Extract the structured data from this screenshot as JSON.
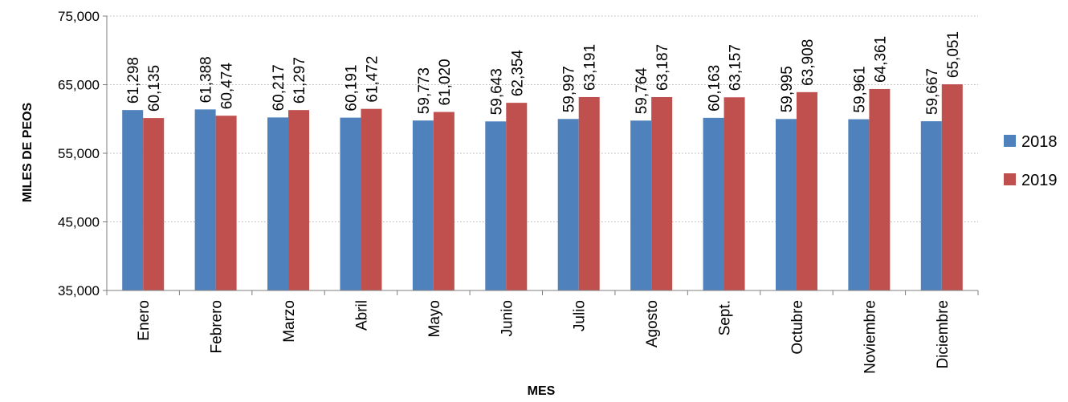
{
  "chart_data": {
    "type": "bar",
    "title": "",
    "xlabel": "MES",
    "ylabel": "MILES DE PEOS",
    "ylim": [
      35000,
      75000
    ],
    "yticks": [
      35000,
      45000,
      55000,
      65000,
      75000
    ],
    "yticks_labels": [
      "35,000",
      "45,000",
      "55,000",
      "65,000",
      "75,000"
    ],
    "grid": "horizontal dotted",
    "legend_position": "right",
    "categories": [
      "Enero",
      "Febrero",
      "Marzo",
      "Abril",
      "Mayo",
      "Junio",
      "Julio",
      "Agosto",
      "Sept.",
      "Octubre",
      "Noviembre",
      "Diciembre"
    ],
    "series": [
      {
        "name": "2018",
        "color": "#4f81bd",
        "values": [
          61298,
          61388,
          60217,
          60191,
          59773,
          59643,
          59997,
          59764,
          60163,
          59995,
          59961,
          59667
        ],
        "labels": [
          "61,298",
          "61,388",
          "60,217",
          "60,191",
          "59,773",
          "59,643",
          "59,997",
          "59,764",
          "60,163",
          "59,995",
          "59,961",
          "59,667"
        ]
      },
      {
        "name": "2019",
        "color": "#c0504d",
        "values": [
          60135,
          60474,
          61297,
          61472,
          61020,
          62354,
          63191,
          63187,
          63157,
          63908,
          64361,
          65051
        ],
        "labels": [
          "60,135",
          "60,474",
          "61,297",
          "61,472",
          "61,020",
          "62,354",
          "63,191",
          "63,187",
          "63,157",
          "63,908",
          "64,361",
          "65,051"
        ]
      }
    ]
  }
}
